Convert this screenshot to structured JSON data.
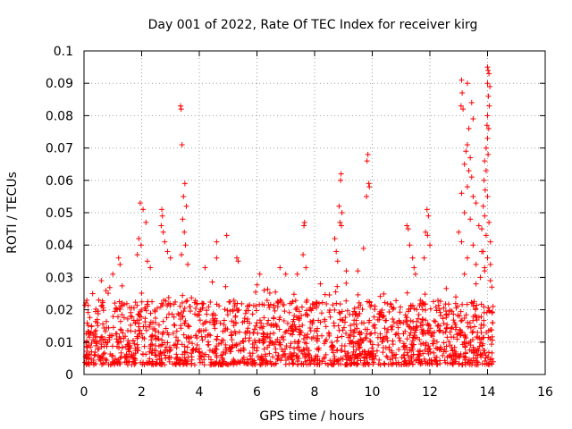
{
  "chart_data": {
    "type": "scatter",
    "title": "Day 001 of 2022, Rate Of TEC Index for receiver kirg",
    "xlabel": "GPS time / hours",
    "ylabel": "ROTI / TECUs",
    "xlim": [
      0,
      16
    ],
    "ylim": [
      0,
      0.1
    ],
    "xticks": [
      0,
      2,
      4,
      6,
      8,
      10,
      12,
      14,
      16
    ],
    "xtick_labels": [
      "0",
      "2",
      "4",
      "6",
      "8",
      "10",
      "12",
      "14",
      "16"
    ],
    "yticks": [
      0,
      0.01,
      0.02,
      0.03,
      0.04,
      0.05,
      0.06,
      0.07,
      0.08,
      0.09,
      0.1
    ],
    "ytick_labels": [
      "0",
      "0.01",
      "0.02",
      "0.03",
      "0.04",
      "0.05",
      "0.06",
      "0.07",
      "0.08",
      "0.09",
      "0.1"
    ],
    "grid": true,
    "marker": "+",
    "series_color": "#ff0000",
    "series": [
      {
        "name": "ROTI",
        "note": "dense background cloud of roughly 0.003-0.027 TECU/s from 0 to 14.2 h, plus the listed outliers",
        "points": [
          [
            1.95,
            0.053
          ],
          [
            2.05,
            0.051
          ],
          [
            2.15,
            0.047
          ],
          [
            1.9,
            0.042
          ],
          [
            1.98,
            0.04
          ],
          [
            1.85,
            0.037
          ],
          [
            2.2,
            0.035
          ],
          [
            2.3,
            0.033
          ],
          [
            2.7,
            0.051
          ],
          [
            2.72,
            0.049
          ],
          [
            2.68,
            0.046
          ],
          [
            2.75,
            0.044
          ],
          [
            2.8,
            0.041
          ],
          [
            2.9,
            0.038
          ],
          [
            3.0,
            0.036
          ],
          [
            3.35,
            0.083
          ],
          [
            3.37,
            0.082
          ],
          [
            3.4,
            0.071
          ],
          [
            3.5,
            0.059
          ],
          [
            3.45,
            0.055
          ],
          [
            3.55,
            0.052
          ],
          [
            3.42,
            0.048
          ],
          [
            3.48,
            0.044
          ],
          [
            3.52,
            0.04
          ],
          [
            3.38,
            0.037
          ],
          [
            3.6,
            0.034
          ],
          [
            1.2,
            0.036
          ],
          [
            1.25,
            0.034
          ],
          [
            1.0,
            0.031
          ],
          [
            0.3,
            0.025
          ],
          [
            0.6,
            0.029
          ],
          [
            4.6,
            0.041
          ],
          [
            4.6,
            0.036
          ],
          [
            4.95,
            0.043
          ],
          [
            5.3,
            0.036
          ],
          [
            5.35,
            0.035
          ],
          [
            4.2,
            0.033
          ],
          [
            6.1,
            0.031
          ],
          [
            6.8,
            0.033
          ],
          [
            7.0,
            0.031
          ],
          [
            7.65,
            0.047
          ],
          [
            7.63,
            0.046
          ],
          [
            7.6,
            0.037
          ],
          [
            7.7,
            0.033
          ],
          [
            7.4,
            0.031
          ],
          [
            8.2,
            0.028
          ],
          [
            8.9,
            0.06
          ],
          [
            8.92,
            0.062
          ],
          [
            8.85,
            0.052
          ],
          [
            8.95,
            0.05
          ],
          [
            8.88,
            0.047
          ],
          [
            8.93,
            0.046
          ],
          [
            8.7,
            0.042
          ],
          [
            8.75,
            0.038
          ],
          [
            8.8,
            0.035
          ],
          [
            9.1,
            0.032
          ],
          [
            9.85,
            0.068
          ],
          [
            9.82,
            0.066
          ],
          [
            9.88,
            0.059
          ],
          [
            9.8,
            0.055
          ],
          [
            9.9,
            0.058
          ],
          [
            9.7,
            0.039
          ],
          [
            9.5,
            0.032
          ],
          [
            11.2,
            0.046
          ],
          [
            11.25,
            0.045
          ],
          [
            11.3,
            0.04
          ],
          [
            11.4,
            0.036
          ],
          [
            11.45,
            0.033
          ],
          [
            11.5,
            0.031
          ],
          [
            11.9,
            0.051
          ],
          [
            11.95,
            0.049
          ],
          [
            11.85,
            0.044
          ],
          [
            11.92,
            0.043
          ],
          [
            12.0,
            0.04
          ],
          [
            11.8,
            0.036
          ],
          [
            13.1,
            0.091
          ],
          [
            13.12,
            0.087
          ],
          [
            13.08,
            0.083
          ],
          [
            13.15,
            0.082
          ],
          [
            13.3,
            0.09
          ],
          [
            13.45,
            0.084
          ],
          [
            13.5,
            0.079
          ],
          [
            13.35,
            0.076
          ],
          [
            13.3,
            0.071
          ],
          [
            13.25,
            0.069
          ],
          [
            13.4,
            0.067
          ],
          [
            13.2,
            0.065
          ],
          [
            13.35,
            0.063
          ],
          [
            13.45,
            0.061
          ],
          [
            13.3,
            0.058
          ],
          [
            13.1,
            0.056
          ],
          [
            13.5,
            0.055
          ],
          [
            13.6,
            0.053
          ],
          [
            13.2,
            0.05
          ],
          [
            13.4,
            0.048
          ],
          [
            13.7,
            0.046
          ],
          [
            13.0,
            0.044
          ],
          [
            13.1,
            0.041
          ],
          [
            13.5,
            0.04
          ],
          [
            13.8,
            0.038
          ],
          [
            13.3,
            0.036
          ],
          [
            13.6,
            0.034
          ],
          [
            13.9,
            0.033
          ],
          [
            13.2,
            0.031
          ],
          [
            14.0,
            0.095
          ],
          [
            14.02,
            0.094
          ],
          [
            14.05,
            0.093
          ],
          [
            14.0,
            0.09
          ],
          [
            14.08,
            0.089
          ],
          [
            14.03,
            0.086
          ],
          [
            14.06,
            0.083
          ],
          [
            14.0,
            0.08
          ],
          [
            13.98,
            0.077
          ],
          [
            14.04,
            0.076
          ],
          [
            14.0,
            0.073
          ],
          [
            13.95,
            0.07
          ],
          [
            14.02,
            0.068
          ],
          [
            13.9,
            0.066
          ],
          [
            13.95,
            0.063
          ],
          [
            13.88,
            0.06
          ],
          [
            13.92,
            0.057
          ],
          [
            14.0,
            0.055
          ],
          [
            13.85,
            0.052
          ],
          [
            13.9,
            0.049
          ],
          [
            14.05,
            0.047
          ],
          [
            13.8,
            0.045
          ],
          [
            13.95,
            0.043
          ],
          [
            14.1,
            0.041
          ],
          [
            13.85,
            0.038
          ],
          [
            14.0,
            0.036
          ],
          [
            14.1,
            0.034
          ],
          [
            13.9,
            0.032
          ],
          [
            13.75,
            0.03
          ],
          [
            14.1,
            0.029
          ],
          [
            14.15,
            0.027
          ],
          [
            13.6,
            0.028
          ]
        ]
      }
    ]
  }
}
